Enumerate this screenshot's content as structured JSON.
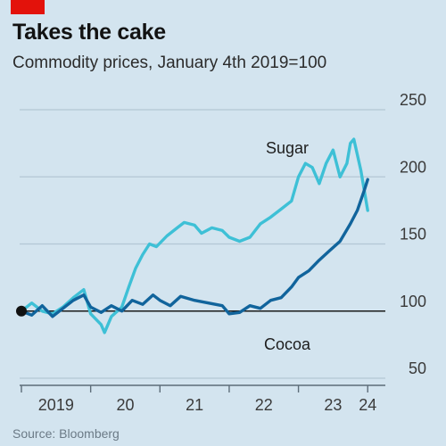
{
  "header": {
    "title": "Takes the cake",
    "subtitle": "Commodity prices, January 4th 2019=100"
  },
  "footer": {
    "source": "Source: Bloomberg"
  },
  "colors": {
    "accent_tag": "#e3120b",
    "sugar": "#3ec0d6",
    "cocoa": "#11649c",
    "baseline": "#1a1a1a",
    "grid": "#b3c7d4"
  },
  "chart_data": {
    "type": "line",
    "title": "Takes the cake",
    "subtitle": "Commodity prices, January 4th 2019=100",
    "ylim": [
      50,
      250
    ],
    "yticks": [
      50,
      100,
      150,
      200,
      250
    ],
    "xlim": [
      2019.0,
      2024.1
    ],
    "xtick_labels": [
      "2019",
      "20",
      "21",
      "22",
      "23",
      "24"
    ],
    "grid": true,
    "series": [
      {
        "name": "Sugar",
        "x": [
          2019.0,
          2019.15,
          2019.3,
          2019.45,
          2019.6,
          2019.75,
          2019.9,
          2020.0,
          2020.15,
          2020.2,
          2020.3,
          2020.45,
          2020.55,
          2020.65,
          2020.75,
          2020.85,
          2020.95,
          2021.1,
          2021.25,
          2021.35,
          2021.5,
          2021.6,
          2021.75,
          2021.9,
          2022.0,
          2022.15,
          2022.3,
          2022.45,
          2022.6,
          2022.75,
          2022.9,
          2023.0,
          2023.1,
          2023.2,
          2023.3,
          2023.4,
          2023.5,
          2023.6,
          2023.7,
          2023.75,
          2023.8,
          2023.9,
          2024.0
        ],
        "values": [
          100,
          106,
          100,
          98,
          103,
          110,
          116,
          98,
          90,
          84,
          96,
          103,
          118,
          132,
          142,
          150,
          148,
          156,
          162,
          166,
          164,
          158,
          162,
          160,
          155,
          152,
          155,
          165,
          170,
          176,
          182,
          200,
          210,
          207,
          195,
          210,
          220,
          200,
          210,
          225,
          228,
          205,
          175
        ]
      },
      {
        "name": "Cocoa",
        "x": [
          2019.0,
          2019.15,
          2019.3,
          2019.45,
          2019.6,
          2019.75,
          2019.9,
          2020.0,
          2020.15,
          2020.3,
          2020.45,
          2020.6,
          2020.75,
          2020.9,
          2021.0,
          2021.15,
          2021.3,
          2021.5,
          2021.7,
          2021.9,
          2022.0,
          2022.15,
          2022.3,
          2022.45,
          2022.6,
          2022.75,
          2022.9,
          2023.0,
          2023.15,
          2023.3,
          2023.45,
          2023.6,
          2023.75,
          2023.85,
          2023.95,
          2024.0
        ],
        "values": [
          100,
          97,
          104,
          96,
          102,
          108,
          112,
          103,
          99,
          104,
          100,
          108,
          105,
          112,
          108,
          104,
          111,
          108,
          106,
          104,
          98,
          99,
          104,
          102,
          108,
          110,
          118,
          125,
          130,
          138,
          145,
          152,
          165,
          175,
          190,
          198
        ]
      }
    ],
    "annotations": [
      {
        "text": "Sugar",
        "series": "Sugar"
      },
      {
        "text": "Cocoa",
        "series": "Cocoa"
      }
    ]
  }
}
